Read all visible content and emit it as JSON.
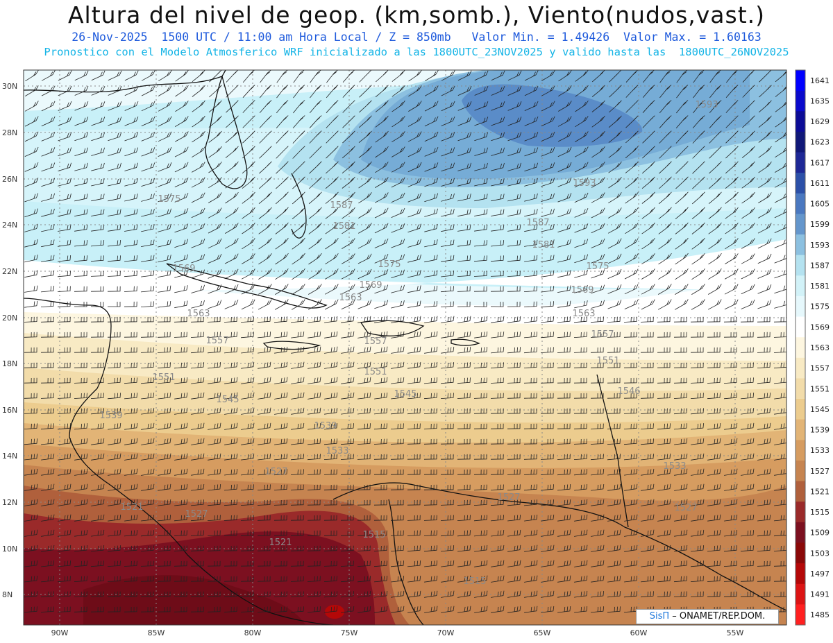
{
  "header": {
    "title": "Altura del nivel de geop. (km,somb.), Viento(nudos,vast.)",
    "subtitle1": "26-Nov-2025  1500 UTC / 11:00 am Hora Local / Z = 850mb   Valor Min. = 1.49426  Valor Max. = 1.60163",
    "subtitle2": "Pronostico con el Modelo Atmosferico WRF inicializado a las 1800UTC_23NOV2025 y valido hasta las  1800UTC_26NOV2025"
  },
  "map": {
    "lat_labels": [
      "30N",
      "28N",
      "26N",
      "24N",
      "22N",
      "20N",
      "18N",
      "16N",
      "14N",
      "12N",
      "10N",
      "8N"
    ],
    "lon_labels": [
      "90W",
      "85W",
      "80W",
      "75W",
      "70W",
      "65W",
      "60W",
      "55W"
    ],
    "contour_labels": [
      "1593",
      "1593",
      "1587",
      "1587",
      "1581",
      "1581",
      "1575",
      "1575",
      "1575",
      "1569",
      "1569",
      "1569",
      "1563",
      "1563",
      "1563",
      "1557",
      "1557",
      "1557",
      "1551",
      "1551",
      "1551",
      "1545",
      "1545",
      "1546",
      "1539",
      "1539",
      "1533",
      "1533",
      "1527",
      "1527",
      "1527",
      "1521",
      "1521",
      "1515",
      "1515",
      "1527"
    ]
  },
  "colorbar": {
    "levels": [
      "1641",
      "1635",
      "1629",
      "1623",
      "1617",
      "1611",
      "1605",
      "1599",
      "1593",
      "1587",
      "1581",
      "1575",
      "1569",
      "1563",
      "1557",
      "1551",
      "1545",
      "1539",
      "1533",
      "1527",
      "1521",
      "1515",
      "1509",
      "1503",
      "1497",
      "1491",
      "1485"
    ],
    "colors": [
      "#0000ff",
      "#0a0acc",
      "#0c0c96",
      "#101878",
      "#1e2896",
      "#2c50a8",
      "#4a78c0",
      "#6496cc",
      "#8cc0e0",
      "#b4e2f0",
      "#d2f2f8",
      "#e6f8fc",
      "#ffffff",
      "#fdf6e0",
      "#f8eac4",
      "#f2dcaa",
      "#eccc8e",
      "#e2b476",
      "#d69c60",
      "#c68450",
      "#b0603c",
      "#9a2a2a",
      "#7c1020",
      "#8a0808",
      "#b40808",
      "#dc1414",
      "#ff2020"
    ]
  },
  "credit": {
    "brand": "SisΠ",
    "text": "– ONAMET/REP.DOM."
  }
}
